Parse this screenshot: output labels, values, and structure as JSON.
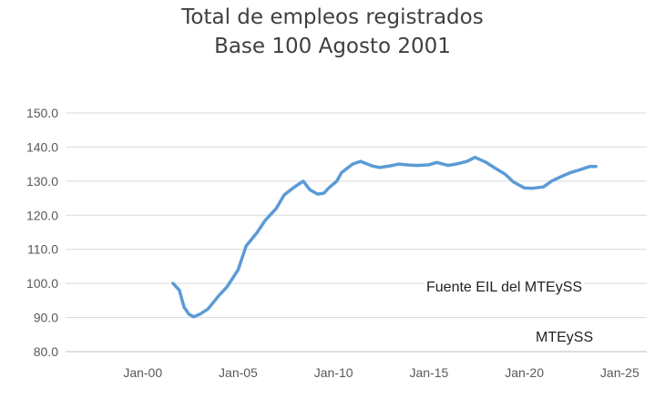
{
  "chart_data": {
    "type": "line",
    "title": "Total de empleos registrados",
    "subtitle": "Base 100 Agosto 2001",
    "xlabel": "",
    "ylabel": "",
    "ylim": [
      80,
      150
    ],
    "yticks": [
      80,
      90,
      100,
      110,
      120,
      130,
      140,
      150
    ],
    "ytick_labels": [
      "80.0",
      "90.0",
      "100.0",
      "110.0",
      "120.0",
      "130.0",
      "140.0",
      "150.0"
    ],
    "xlim": [
      "1995-12-15",
      "2026-06-01"
    ],
    "xticks": [
      "2000-01",
      "2005-01",
      "2010-01",
      "2015-01",
      "2020-01",
      "2025-01"
    ],
    "xtick_labels": [
      "Jan-00",
      "Jan-05",
      "Jan-10",
      "Jan-15",
      "Jan-20",
      "Jan-25"
    ],
    "grid": true,
    "series_color": "#5b9bd5",
    "series": [
      {
        "name": "",
        "x": [
          "2001-08",
          "2001-12",
          "2002-03",
          "2002-06",
          "2002-09",
          "2003-01",
          "2003-06",
          "2004-01",
          "2004-06",
          "2005-01",
          "2005-06",
          "2006-01",
          "2006-06",
          "2007-01",
          "2007-06",
          "2008-01",
          "2008-06",
          "2008-10",
          "2009-03",
          "2009-07",
          "2009-10",
          "2010-03",
          "2010-06",
          "2011-01",
          "2011-06",
          "2012-01",
          "2012-06",
          "2013-01",
          "2013-06",
          "2014-01",
          "2014-06",
          "2015-01",
          "2015-06",
          "2016-01",
          "2016-06",
          "2017-01",
          "2017-06",
          "2018-01",
          "2018-06",
          "2019-01",
          "2019-06",
          "2020-01",
          "2020-06",
          "2021-01",
          "2021-06",
          "2022-01",
          "2022-06",
          "2023-01",
          "2023-06",
          "2023-10"
        ],
        "values": [
          100.0,
          98.0,
          93.0,
          91.0,
          90.2,
          91.0,
          92.5,
          96.5,
          99.0,
          104.0,
          111.0,
          115.0,
          118.5,
          122.0,
          126.0,
          128.5,
          130.0,
          127.5,
          126.2,
          126.5,
          128.0,
          130.0,
          132.5,
          135.0,
          135.8,
          134.5,
          134.0,
          134.5,
          135.0,
          134.7,
          134.6,
          134.8,
          135.5,
          134.6,
          135.0,
          135.8,
          137.0,
          135.5,
          134.0,
          132.0,
          129.8,
          128.0,
          127.9,
          128.3,
          130.0,
          131.5,
          132.5,
          133.5,
          134.3,
          134.3
        ]
      }
    ]
  },
  "notes": {
    "source": "Fuente EIL del MTEySS",
    "credit": "MTEySS"
  }
}
